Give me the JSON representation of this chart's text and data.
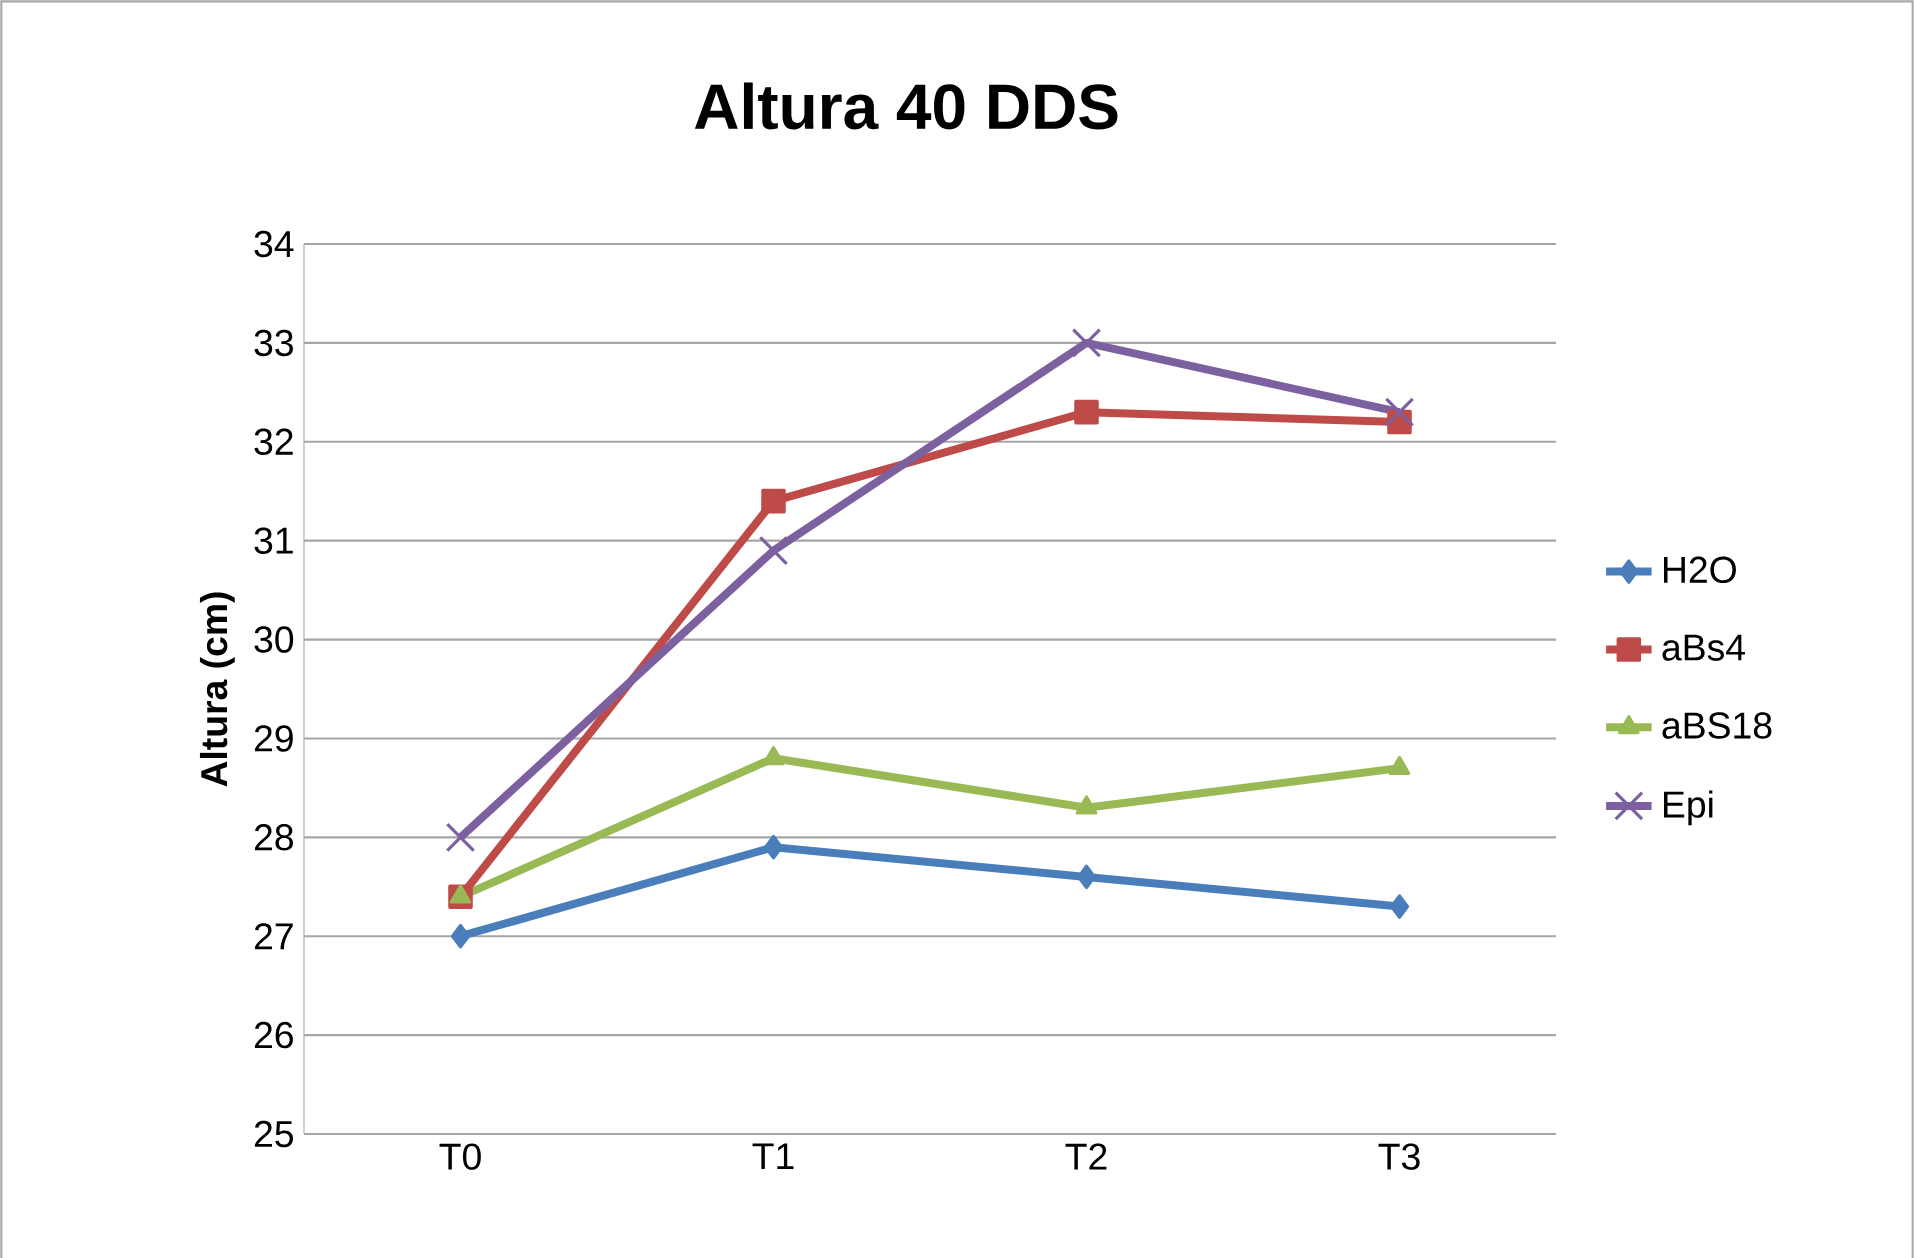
{
  "chart_data": {
    "type": "line",
    "title": "Altura 40 DDS",
    "ylabel": "Altura (cm)",
    "categories": [
      "T0",
      "T1",
      "T2",
      "T3"
    ],
    "series": [
      {
        "name": "H2O",
        "color": "#4a7ebb",
        "marker": "diamond",
        "values": [
          27.0,
          27.9,
          27.6,
          27.3
        ]
      },
      {
        "name": "aBs4",
        "color": "#be4b48",
        "marker": "square",
        "values": [
          27.4,
          31.4,
          32.3,
          32.2
        ]
      },
      {
        "name": "aBS18",
        "color": "#98b954",
        "marker": "triangle",
        "values": [
          27.4,
          28.8,
          28.3,
          28.7
        ]
      },
      {
        "name": "Epi",
        "color": "#7d60a0",
        "marker": "cross",
        "values": [
          28.0,
          30.9,
          33.0,
          32.3
        ]
      }
    ],
    "ylim": [
      25,
      34
    ],
    "yticks": [
      25,
      26,
      27,
      28,
      29,
      30,
      31,
      32,
      33,
      34
    ],
    "grid": "y",
    "legend": "right",
    "line_style": "solid"
  }
}
